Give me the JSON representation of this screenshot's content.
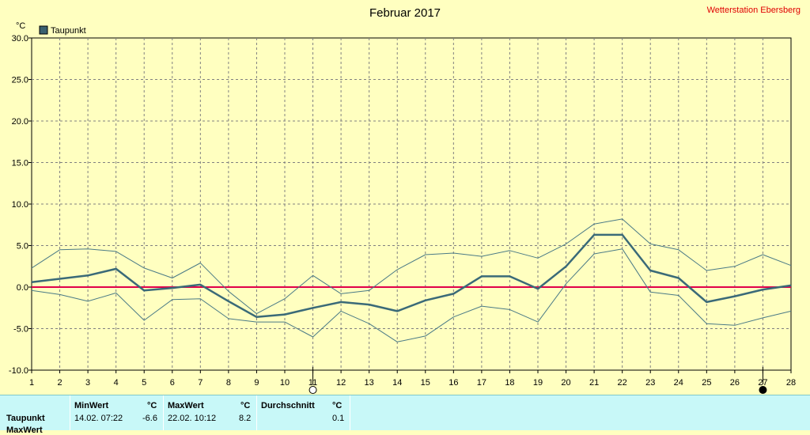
{
  "header": {
    "title": "Februar 2017",
    "station": "Wetterstation Ebersberg",
    "unit": "°C"
  },
  "legend": {
    "label": "Taupunkt",
    "swatch_color": "#3a6070"
  },
  "colors": {
    "plot_bg": "#ffffc0",
    "line": "#3a6a78",
    "zero_line": "#e0004a",
    "grid": "#808080"
  },
  "chart_data": {
    "type": "line",
    "title": "Februar 2017",
    "ylabel": "°C",
    "x": [
      1,
      2,
      3,
      4,
      5,
      6,
      7,
      8,
      9,
      10,
      11,
      12,
      13,
      14,
      15,
      16,
      17,
      18,
      19,
      20,
      21,
      22,
      23,
      24,
      25,
      26,
      27,
      28
    ],
    "ylim": [
      -10,
      30
    ],
    "yticks": [
      "30.0",
      "25.0",
      "20.0",
      "15.0",
      "10.0",
      "5.0",
      "0.0",
      "-5.0",
      "-10.0"
    ],
    "grid": true,
    "zero_line": 0,
    "moon_markers": [
      {
        "day": 11,
        "phase": "full"
      },
      {
        "day": 27,
        "phase": "new"
      }
    ],
    "series": [
      {
        "name": "Taupunkt",
        "role": "mean",
        "values": [
          0.6,
          1.0,
          1.4,
          2.2,
          -0.4,
          -0.1,
          0.3,
          -1.7,
          -3.6,
          -3.3,
          -2.5,
          -1.8,
          -2.1,
          -2.9,
          -1.6,
          -0.8,
          1.3,
          1.3,
          -0.2,
          2.5,
          6.3,
          6.3,
          2.0,
          1.1,
          -1.8,
          -1.1,
          -0.3,
          0.2
        ]
      },
      {
        "role": "max",
        "values": [
          2.3,
          4.5,
          4.6,
          4.3,
          2.3,
          1.1,
          2.9,
          -0.5,
          -3.2,
          -1.4,
          1.4,
          -0.8,
          -0.4,
          2.1,
          3.9,
          4.1,
          3.7,
          4.4,
          3.5,
          5.2,
          7.6,
          8.2,
          5.2,
          4.5,
          2.0,
          2.5,
          3.9,
          2.6
        ]
      },
      {
        "role": "min",
        "values": [
          -0.4,
          -0.9,
          -1.7,
          -0.7,
          -4.0,
          -1.5,
          -1.4,
          -3.8,
          -4.2,
          -4.2,
          -6.0,
          -2.9,
          -4.4,
          -6.6,
          -5.9,
          -3.6,
          -2.3,
          -2.7,
          -4.2,
          0.4,
          4.0,
          4.6,
          -0.6,
          -1.0,
          -4.4,
          -4.6,
          -3.7,
          -2.9
        ]
      }
    ]
  },
  "table": {
    "row_label": "Taupunkt",
    "row2_label": "MaxWert",
    "cols": [
      {
        "header": "MinWert",
        "unit": "°C",
        "time": "14.02.  07:22",
        "value": "-6.6"
      },
      {
        "header": "MaxWert",
        "unit": "°C",
        "time": "22.02.  10:12",
        "value": "8.2"
      },
      {
        "header": "Durchschnitt",
        "unit": "°C",
        "time": "",
        "value": "0.1"
      }
    ]
  }
}
